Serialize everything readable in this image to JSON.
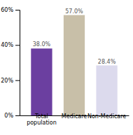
{
  "chart_data": {
    "type": "bar",
    "categories": [
      "Total\npopulation",
      "Medicare",
      "Non-Medicare"
    ],
    "values": [
      38.0,
      57.0,
      28.4
    ],
    "value_labels": [
      "38.0%",
      "57.0%",
      "28.4%"
    ],
    "colors": [
      "#6b3fa0",
      "#c8bfa8",
      "#dcdaed"
    ],
    "ylim": [
      0,
      60
    ],
    "yticks": [
      {
        "value": 0,
        "label": "0%"
      },
      {
        "value": 20,
        "label": "20%"
      },
      {
        "value": 40,
        "label": "40%"
      },
      {
        "value": 60,
        "label": "60%"
      }
    ],
    "grid": false,
    "data_labels": true
  }
}
